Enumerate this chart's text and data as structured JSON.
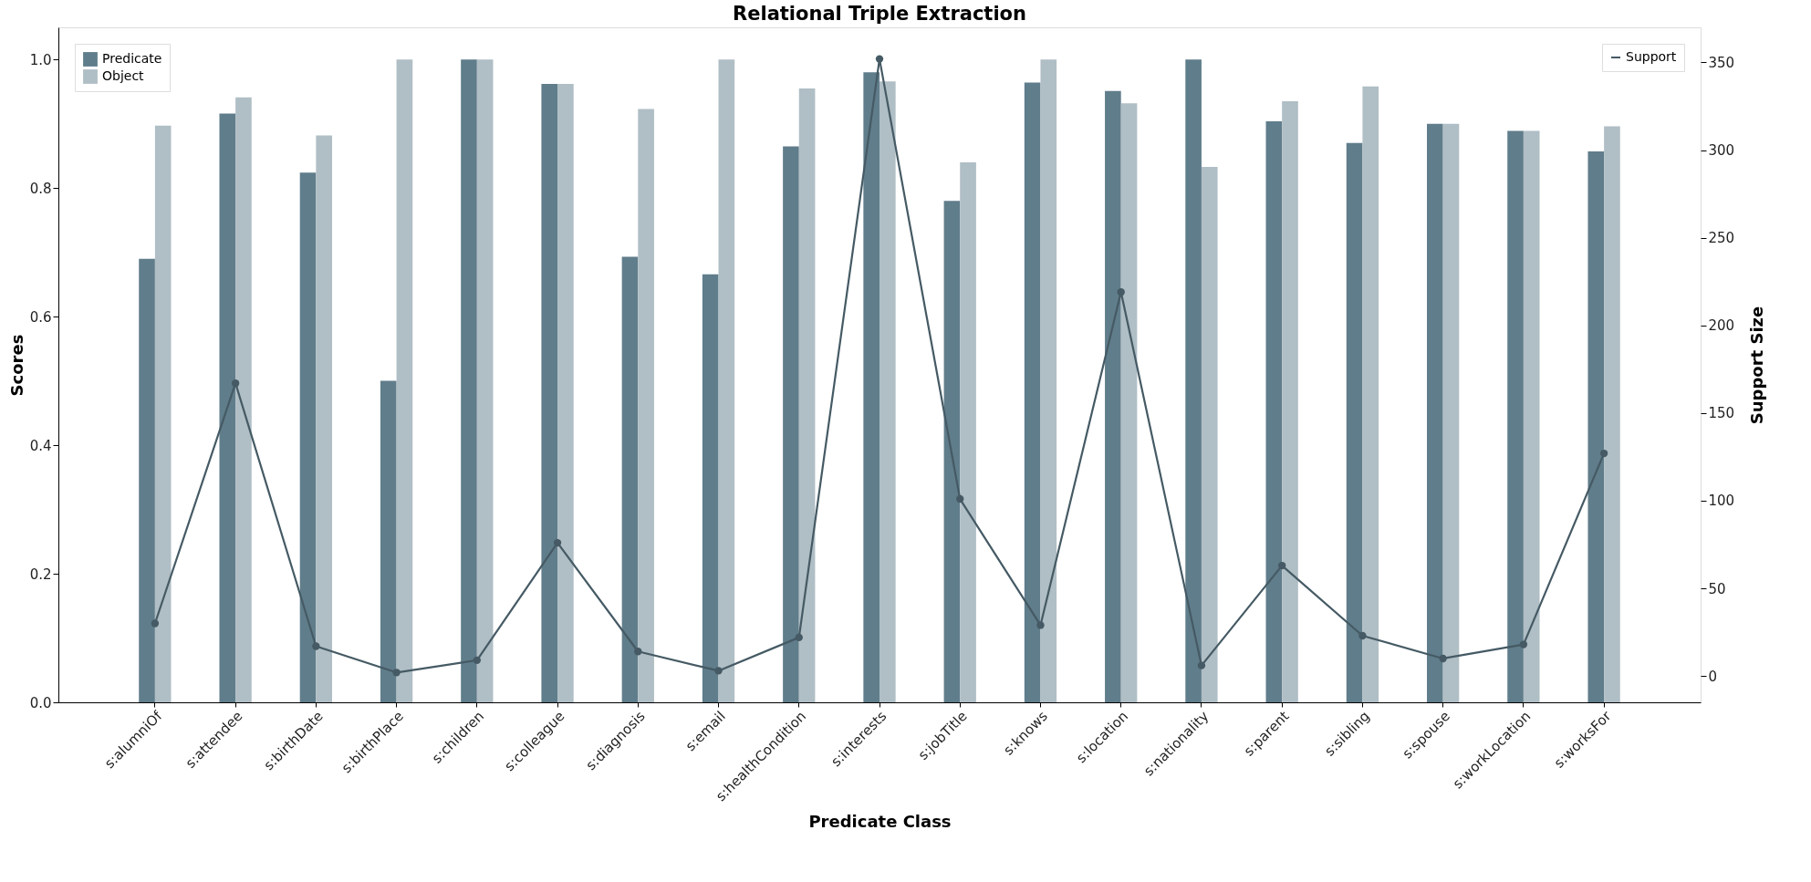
{
  "chart_data": {
    "type": "bar",
    "title": "Relational Triple Extraction",
    "xlabel": "Predicate Class",
    "ylabel": "Scores",
    "y2label": "Support Size",
    "categories": [
      "s:alumniOf",
      "s:attendee",
      "s:birthDate",
      "s:birthPlace",
      "s:children",
      "s:colleague",
      "s:diagnosis",
      "s:email",
      "s:healthCondition",
      "s:interests",
      "s:jobTitle",
      "s:knows",
      "s:location",
      "s:nationality",
      "s:parent",
      "s:sibling",
      "s:spouse",
      "s:workLocation",
      "s:worksFor"
    ],
    "series": [
      {
        "name": "Predicate",
        "color": "#607d8b",
        "values": [
          0.69,
          0.916,
          0.824,
          0.5,
          1.0,
          0.962,
          0.693,
          0.666,
          0.865,
          0.98,
          0.78,
          0.964,
          0.951,
          1.0,
          0.904,
          0.87,
          0.9,
          0.889,
          0.857
        ]
      },
      {
        "name": "Object",
        "color": "#b0bec5",
        "values": [
          0.897,
          0.941,
          0.882,
          1.0,
          1.0,
          0.962,
          0.923,
          1.0,
          0.955,
          0.966,
          0.84,
          1.0,
          0.932,
          0.833,
          0.935,
          0.958,
          0.9,
          0.889,
          0.896
        ]
      },
      {
        "name": "Support",
        "type": "line",
        "axis": "y2",
        "marker": "circle",
        "color": "#455a64",
        "values": [
          30,
          167,
          17,
          2,
          9,
          76,
          14,
          3,
          22,
          352,
          101,
          29,
          219,
          6,
          63,
          23,
          10,
          18,
          127
        ]
      }
    ],
    "ylim": [
      0,
      1.05
    ],
    "yticks": [
      {
        "value": 0,
        "label": "0.0"
      },
      {
        "value": 0.2,
        "label": "0.2"
      },
      {
        "value": 0.4,
        "label": "0.4"
      },
      {
        "value": 0.6,
        "label": "0.6"
      },
      {
        "value": 0.8,
        "label": "0.8"
      },
      {
        "value": 1,
        "label": "1.0"
      }
    ],
    "y2lim": [
      -15,
      370
    ],
    "y2ticks": [
      0,
      50,
      100,
      150,
      200,
      250,
      300,
      350
    ],
    "grid": false,
    "legend": "top left"
  }
}
